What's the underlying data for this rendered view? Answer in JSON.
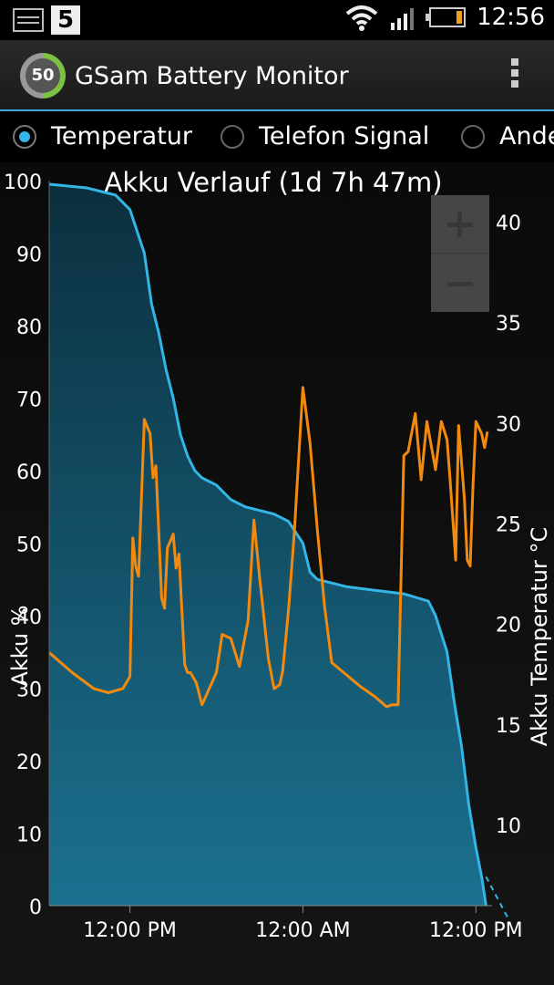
{
  "status_bar": {
    "notification_count": "5",
    "time": "12:56",
    "icons": [
      "image-notification-icon",
      "notification-badge",
      "wifi-icon",
      "signal-icon",
      "battery-icon"
    ]
  },
  "app_bar": {
    "badge": "50",
    "title": "GSam Battery Monitor",
    "menu_icon": "overflow-menu-icon"
  },
  "radio_options": [
    {
      "label": "Temperatur",
      "selected": true
    },
    {
      "label": "Telefon Signal",
      "selected": false
    },
    {
      "label": "Ande",
      "selected": false
    }
  ],
  "colors": {
    "battery_line": "#33b5e5",
    "battery_fill": "#17647f",
    "temperature_line": "#f28a0f",
    "accent": "#33b5e5"
  },
  "chart_data": {
    "type": "area",
    "title": "Akku Verlauf (1d 7h 47m)",
    "ylabel": "Akku %",
    "y2label": "Akku Temperatur °C",
    "ylim": [
      0,
      100
    ],
    "y2lim": [
      6,
      43
    ],
    "yticks": [
      0,
      10,
      20,
      30,
      40,
      50,
      60,
      70,
      80,
      90,
      100
    ],
    "y2ticks": [
      10,
      15,
      20,
      25,
      30,
      35,
      40
    ],
    "xlim_hours": [
      -5.6,
      26.7
    ],
    "xticks": [
      {
        "h": 0,
        "label": "12:00 PM"
      },
      {
        "h": 12,
        "label": "12:00 AM"
      },
      {
        "h": 24,
        "label": "12:00 PM"
      }
    ],
    "grid": false,
    "series": [
      {
        "name": "Akku",
        "type": "area",
        "axis": "left",
        "x": [
          -5.6,
          -3,
          -1,
          0,
          1,
          1.5,
          2,
          2.5,
          3,
          3.5,
          4,
          4.5,
          5,
          6,
          7,
          8,
          9,
          10,
          11,
          12,
          12.5,
          13,
          15,
          17,
          19,
          20.7,
          21.2,
          22,
          22.5,
          23,
          23.5,
          24,
          24.4,
          24.7
        ],
        "y": [
          99.5,
          99,
          98,
          96,
          90,
          83,
          79,
          74,
          70,
          65,
          62,
          60,
          59,
          58,
          56,
          55,
          54.5,
          54,
          53,
          50,
          46,
          45,
          44,
          43.5,
          43,
          42,
          40,
          35,
          28,
          22,
          14,
          8,
          4,
          0
        ],
        "projection": {
          "x": [
            24.7,
            26.3
          ],
          "y": [
            4,
            -2
          ]
        }
      },
      {
        "name": "Temperatur",
        "type": "line",
        "axis": "right",
        "x": [
          -5.6,
          -4,
          -2.5,
          -1.5,
          -0.5,
          0,
          0.2,
          0.4,
          0.6,
          1,
          1.4,
          1.6,
          1.8,
          2.2,
          2.4,
          2.6,
          3,
          3.2,
          3.4,
          3.8,
          4,
          4.2,
          4.6,
          5,
          6,
          6.4,
          7,
          7.6,
          8.2,
          8.6,
          9,
          9.6,
          10,
          10.4,
          10.6,
          11,
          11.4,
          12,
          12.5,
          13,
          13.5,
          14,
          16,
          17,
          17.8,
          18.2,
          18.6,
          19,
          19.3,
          19.8,
          20.2,
          20.6,
          21.2,
          21.6,
          22,
          22.2,
          22.6,
          22.8,
          23.2,
          23.4,
          23.6,
          23.8,
          24,
          24.4,
          24.6,
          24.8
        ],
        "y": [
          18.6,
          17.6,
          16.8,
          16.6,
          16.8,
          17.4,
          24.3,
          22.9,
          22.4,
          30.2,
          29.5,
          27.3,
          27.9,
          21.3,
          20.8,
          23.8,
          24.5,
          22.8,
          23.5,
          18,
          17.6,
          17.6,
          17.1,
          16,
          17.6,
          19.5,
          19.3,
          17.9,
          20.2,
          25.2,
          22.3,
          18.3,
          16.8,
          17,
          17.7,
          20.7,
          24.5,
          31.8,
          29,
          24.7,
          20.9,
          18.1,
          16.9,
          16.4,
          15.9,
          16,
          16,
          28.4,
          28.6,
          30.5,
          27.2,
          30.1,
          27.7,
          30.1,
          29.2,
          27.3,
          23.2,
          29.9,
          26.3,
          23.2,
          22.9,
          26.9,
          30.1,
          29.5,
          28.8,
          29.6
        ]
      }
    ]
  }
}
